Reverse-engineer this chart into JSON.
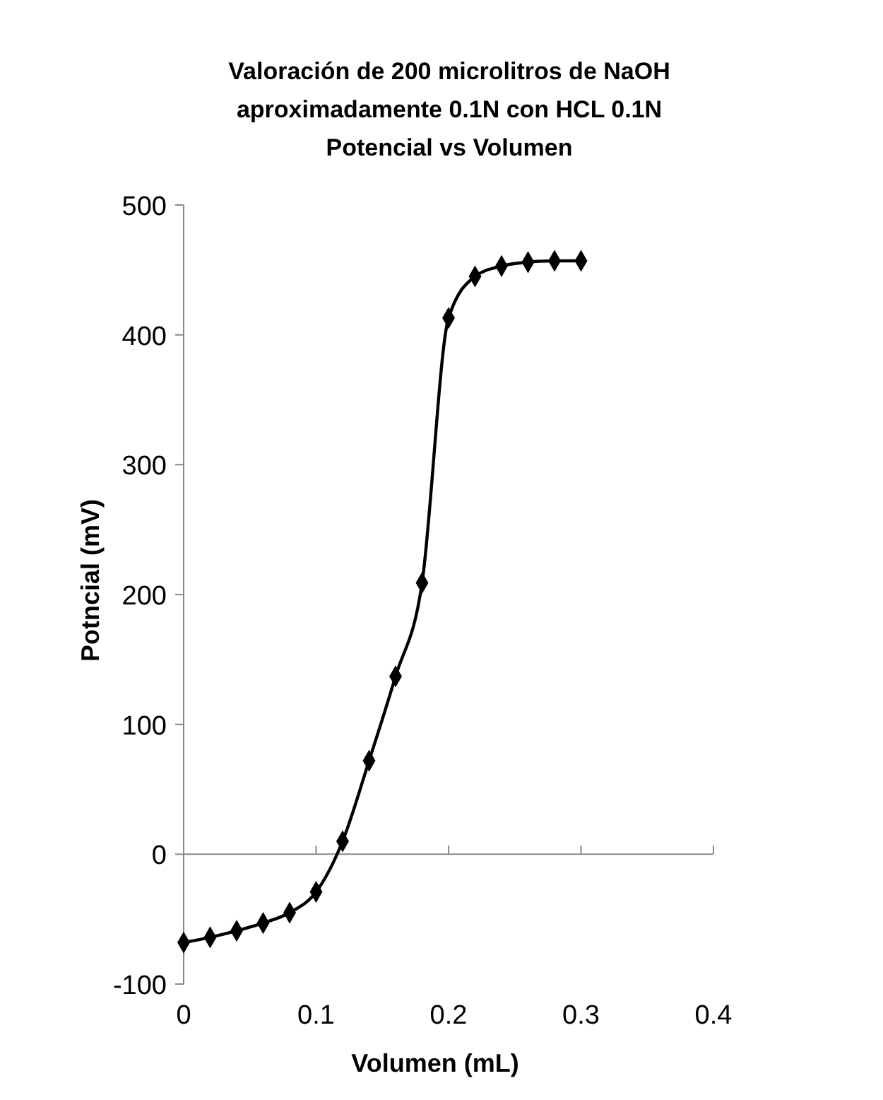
{
  "chart_data": {
    "type": "line",
    "title": "Valoración de 200 microlitros de NaOH\naproximadamente 0.1N con HCL 0.1N\nPotencial vs Volumen",
    "xlabel": "Volumen (mL)",
    "ylabel": "Potncial (mV)",
    "x": [
      0,
      0.02,
      0.04,
      0.06,
      0.08,
      0.1,
      0.12,
      0.14,
      0.16,
      0.18,
      0.2,
      0.22,
      0.24,
      0.26,
      0.28,
      0.3
    ],
    "series": [
      {
        "color": "#000000",
        "values": [
          -68,
          -64,
          -59,
          -53,
          -45,
          -29,
          10,
          72,
          137,
          209,
          413,
          445,
          453,
          456,
          457,
          457
        ]
      }
    ],
    "xlim": [
      0,
      0.4
    ],
    "xticks": [
      0,
      0.1,
      0.2,
      0.3,
      0.4
    ],
    "ylim": [
      -100,
      500
    ],
    "yticks": [
      -100,
      0,
      100,
      200,
      300,
      400,
      500
    ],
    "marker": "diamond",
    "line_style": "solid"
  }
}
